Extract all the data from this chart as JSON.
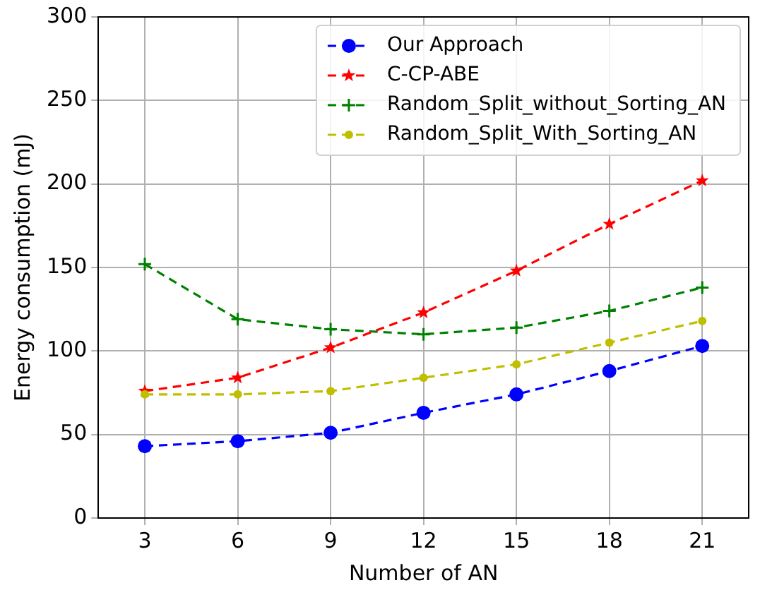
{
  "chart_data": {
    "type": "line",
    "xlabel": "Number of AN",
    "ylabel": "Energy consumption (mJ)",
    "categories": [
      "3",
      "6",
      "9",
      "12",
      "15",
      "18",
      "21"
    ],
    "ylim": [
      0,
      300
    ],
    "yticks": [
      0,
      50,
      100,
      150,
      200,
      250,
      300
    ],
    "grid": true,
    "legend": "top right",
    "line_style": "dashed",
    "series": [
      {
        "name": "Our Approach",
        "color": "#0000ff",
        "marker": "circle",
        "values": [
          43,
          46,
          51,
          63,
          74,
          88,
          103
        ]
      },
      {
        "name": "C-CP-ABE",
        "color": "#ff0000",
        "marker": "star",
        "values": [
          76,
          84,
          102,
          123,
          148,
          176,
          202
        ]
      },
      {
        "name": "Random_Split_without_Sorting_AN",
        "color": "#008000",
        "marker": "cross",
        "values": [
          152,
          119,
          113,
          110,
          114,
          124,
          138
        ]
      },
      {
        "name": "Random_Split_With_Sorting_AN",
        "color": "#bfbf00",
        "marker": "circle",
        "values": [
          74,
          74,
          76,
          84,
          92,
          105,
          118
        ]
      }
    ]
  }
}
